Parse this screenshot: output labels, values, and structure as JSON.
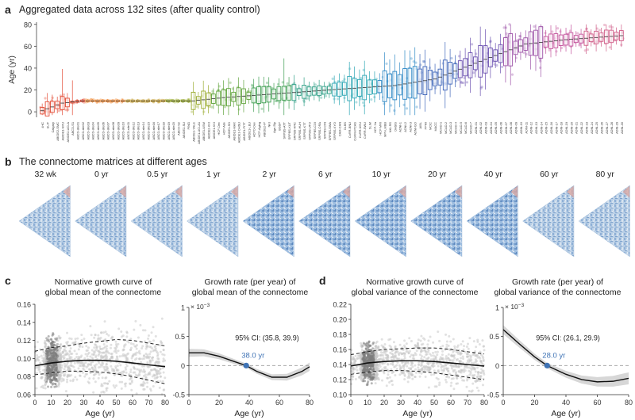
{
  "panel_a": {
    "label": "a",
    "title": "Aggregated data across 132 sites (after quality control)",
    "ylabel": "Age (yr)",
    "yticks": [
      "0",
      "20",
      "40",
      "60",
      "80"
    ],
    "site_labels": [
      "4HC",
      "ELIF",
      "Calgary",
      "ABIDE2-SMC",
      "ABIDE1-NYU",
      "ABIDE2-UCLA",
      "ABCD-S1",
      "ABCD-site01",
      "ABCD-site02",
      "ABCD-site03",
      "ABCD-site04",
      "ABCD-site05",
      "ABCD-site06",
      "ABCD-site07",
      "ABCD-site08",
      "ABCD-site09",
      "ABCD-site10",
      "ABCD-site11",
      "ABCD-site12",
      "ABCD-site13",
      "ABCD-site14",
      "ABCD-site15",
      "ABCD-site16",
      "ABCD-site17",
      "ABCD-site18",
      "ABCD-site19",
      "ABCD-site20",
      "ABCD-S2",
      "ABIDE2-SU",
      "PING",
      "ABIDE1-YALE",
      "ABIDE1-UCLA1",
      "ABIDE1-USM",
      "ABIDE2-KKI",
      "ABIDE1-KKI",
      "HCP-Dev",
      "HCP-Adv",
      "ABIDE1-SD",
      "ABIDE1-MAX",
      "ABIDE1-OHSU",
      "ABIDE1-PITT",
      "ABIDE1-LEU",
      "HCPD-Dev",
      "HCP-Aging",
      "ABIDE2-IP",
      "NKI",
      "Age-Sty",
      "BGSP",
      "SRPBS-ATT",
      "SRPBS-KUT",
      "SRPBS-HRC",
      "SRPBS-HUH",
      "SRPBS-KTT",
      "SRPBS-UTO",
      "SRPBS-COI",
      "SRPBS-ORA",
      "SRPBS-CIN",
      "SRPBS-SWA",
      "SRPBS-KYO",
      "CAM-CAN",
      "DLBS",
      "CoRR-BNU",
      "CoRR-IPCAS",
      "CoRR-NYU",
      "CoRR-SWU",
      "SLIM",
      "HCP-Ya",
      "HCP-MRI",
      "MPI-LMBB",
      "NKI-RS",
      "OASIS",
      "ADNI-1",
      "ADNI-2",
      "ADNI-3",
      "ADNI-GO",
      "AIBL",
      "PPMI",
      "MCIC",
      "MACC",
      "MCAD-1",
      "MCAD-2",
      "MCAD-3",
      "MCAD-4",
      "MCAD-5",
      "MCAD-6",
      "MCAD-7",
      "ADNI-01",
      "ADNI-02",
      "ADNI-03",
      "ADNI-04",
      "ADNI-05",
      "ADNI-06",
      "ADNI-07",
      "ADNI-08",
      "ADNI-09",
      "ADNI-10",
      "ADNI-11",
      "ADNI-12",
      "ADNI-13",
      "ADNI-14",
      "ADNI-15",
      "ADNI-16",
      "ADNI-17",
      "ADNI-18",
      "ADNI-19",
      "ADNI-20",
      "ADNI-21",
      "ADNI-22",
      "ADNI-23",
      "ADNI-24",
      "ADNI-25",
      "ADNI-26",
      "ADNI-27",
      "ADNI-28",
      "ADNI-29",
      "ADNI-30"
    ]
  },
  "panel_b": {
    "label": "b",
    "title": "The connectome matrices at different ages",
    "ages": [
      "32 wk",
      "0 yr",
      "0.5 yr",
      "1 yr",
      "2 yr",
      "6 yr",
      "10 yr",
      "20 yr",
      "40 yr",
      "60 yr",
      "80 yr"
    ]
  },
  "panel_c": {
    "label": "c",
    "left_title_1": "Normative growth curve of",
    "left_title_2": "global mean of the connectome",
    "right_title_1": "Growth rate (per year) of",
    "right_title_2": "global mean of the connectome",
    "xlabel": "Age (yr)",
    "xticks": [
      "0",
      "10",
      "20",
      "30",
      "40",
      "50",
      "60",
      "70",
      "80"
    ],
    "left_yticks": [
      "0.06",
      "0.08",
      "0.10",
      "0.12",
      "0.14",
      "0.16"
    ],
    "right_yticks": [
      "-0.5",
      "0",
      "0.5",
      "1"
    ],
    "right_exponent": "× 10",
    "right_exponent_power": "−3",
    "ci_text": "95% CI: (35.8, 39.9)",
    "peak_text": "38.0 yr"
  },
  "panel_d": {
    "label": "d",
    "left_title_1": "Normative growth curve of",
    "left_title_2": "global variance of the connectome",
    "right_title_1": "Growth rate (per year) of",
    "right_title_2": "global variance of the connectome",
    "xlabel": "Age (yr)",
    "xticks": [
      "0",
      "10",
      "20",
      "30",
      "40",
      "50",
      "60",
      "70",
      "80"
    ],
    "left_yticks": [
      "0.10",
      "0.12",
      "0.14",
      "0.16",
      "0.18",
      "0.20",
      "0.22"
    ],
    "right_yticks": [
      "-0.5",
      "0",
      "0.5",
      "1"
    ],
    "right_exponent": "× 10",
    "right_exponent_power": "−3",
    "ci_text": "95% CI: (26.1, 29.9)",
    "peak_text": "28.0 yr"
  },
  "chart_data": [
    {
      "type": "box",
      "title": "Aggregated data across 132 sites (after quality control)",
      "ylabel": "Age (yr)",
      "ylim": [
        -5,
        82
      ],
      "median_trend": [
        [
          0,
          1
        ],
        [
          4,
          8
        ],
        [
          8,
          10
        ],
        [
          30,
          10
        ],
        [
          36,
          13
        ],
        [
          45,
          16
        ],
        [
          60,
          21
        ],
        [
          70,
          24
        ],
        [
          78,
          30
        ],
        [
          88,
          48
        ],
        [
          96,
          62
        ],
        [
          104,
          66
        ],
        [
          116,
          70
        ],
        [
          131,
          73
        ]
      ]
    },
    {
      "type": "line",
      "title": "Normative growth curve of global mean of the connectome",
      "xlabel": "Age (yr)",
      "xlim": [
        0,
        80
      ],
      "ylim": [
        0.06,
        0.16
      ],
      "x": [
        0,
        10,
        20,
        30,
        40,
        50,
        60,
        70,
        80
      ],
      "median": [
        0.092,
        0.095,
        0.097,
        0.098,
        0.098,
        0.097,
        0.095,
        0.093,
        0.091
      ],
      "upper": [
        0.108,
        0.112,
        0.114,
        0.117,
        0.119,
        0.121,
        0.12,
        0.117,
        0.114
      ],
      "lower": [
        0.082,
        0.084,
        0.086,
        0.086,
        0.085,
        0.083,
        0.08,
        0.076,
        0.072
      ]
    },
    {
      "type": "line",
      "title": "Growth rate (per year) of global mean of the connectome",
      "xlabel": "Age (yr)",
      "xlim": [
        0,
        80
      ],
      "ylim": [
        -0.5,
        1
      ],
      "x": [
        0,
        10,
        20,
        30,
        38,
        45,
        55,
        65,
        75,
        80
      ],
      "values": [
        0.22,
        0.22,
        0.16,
        0.07,
        0,
        -0.1,
        -0.2,
        -0.2,
        -0.1,
        -0.02
      ],
      "peak_age": 38.0,
      "ci": [
        35.8,
        39.9
      ]
    },
    {
      "type": "line",
      "title": "Normative growth curve of global variance of the connectome",
      "xlabel": "Age (yr)",
      "xlim": [
        0,
        80
      ],
      "ylim": [
        0.1,
        0.22
      ],
      "x": [
        0,
        10,
        20,
        30,
        40,
        50,
        60,
        70,
        80
      ],
      "median": [
        0.138,
        0.142,
        0.144,
        0.145,
        0.145,
        0.144,
        0.142,
        0.14,
        0.138
      ],
      "upper": [
        0.153,
        0.157,
        0.16,
        0.161,
        0.162,
        0.162,
        0.16,
        0.157,
        0.154
      ],
      "lower": [
        0.127,
        0.13,
        0.132,
        0.132,
        0.131,
        0.129,
        0.126,
        0.123,
        0.12
      ]
    },
    {
      "type": "line",
      "title": "Growth rate (per year) of global variance of the connectome",
      "xlabel": "Age (yr)",
      "xlim": [
        0,
        80
      ],
      "ylim": [
        -0.5,
        1
      ],
      "x": [
        0,
        5,
        10,
        20,
        28,
        40,
        50,
        60,
        70,
        80
      ],
      "values": [
        0.62,
        0.5,
        0.38,
        0.15,
        0,
        -0.15,
        -0.24,
        -0.28,
        -0.27,
        -0.22
      ],
      "peak_age": 28.0,
      "ci": [
        26.1,
        29.9
      ]
    }
  ]
}
